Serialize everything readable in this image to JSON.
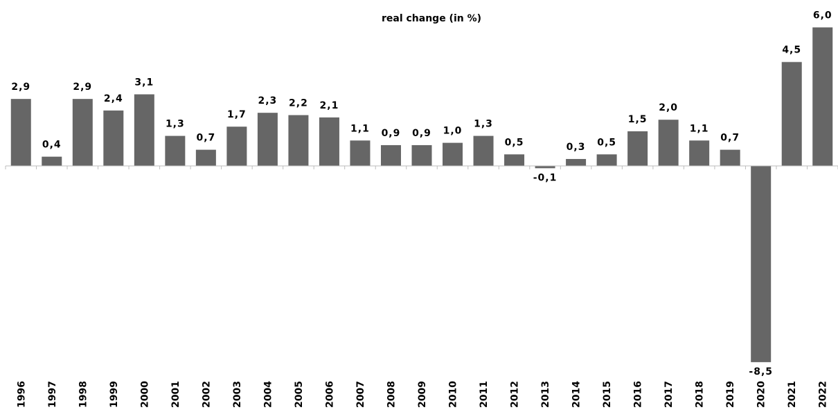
{
  "chart_data": {
    "type": "bar",
    "title": "real change (in %)",
    "xlabel": "",
    "ylabel": "",
    "categories": [
      "1996",
      "1997",
      "1998",
      "1999",
      "2000",
      "2001",
      "2002",
      "2003",
      "2004",
      "2005",
      "2006",
      "2007",
      "2008",
      "2009",
      "2010",
      "2011",
      "2012",
      "2013",
      "2014",
      "2015",
      "2016",
      "2017",
      "2018",
      "2019",
      "2020",
      "2021",
      "2022"
    ],
    "values": [
      2.9,
      0.4,
      2.9,
      2.4,
      3.1,
      1.3,
      0.7,
      1.7,
      2.3,
      2.2,
      2.1,
      1.1,
      0.9,
      0.9,
      1.0,
      1.3,
      0.5,
      -0.1,
      0.3,
      0.5,
      1.5,
      2.0,
      1.1,
      0.7,
      -8.5,
      4.5,
      6.0
    ],
    "data_labels": [
      "2,9",
      "0,4",
      "2,9",
      "2,4",
      "3,1",
      "1,3",
      "0,7",
      "1,7",
      "2,3",
      "2,2",
      "2,1",
      "1,1",
      "0,9",
      "0,9",
      "1,0",
      "1,3",
      "0,5",
      "-0,1",
      "0,3",
      "0,5",
      "1,5",
      "2,0",
      "1,1",
      "0,7",
      "-8,5",
      "4,5",
      "6,0"
    ],
    "ylim": [
      -8.5,
      6.0
    ],
    "grid": false,
    "legend": "none",
    "bar_color": "#666666",
    "axis_color": "#bdbdbd"
  }
}
